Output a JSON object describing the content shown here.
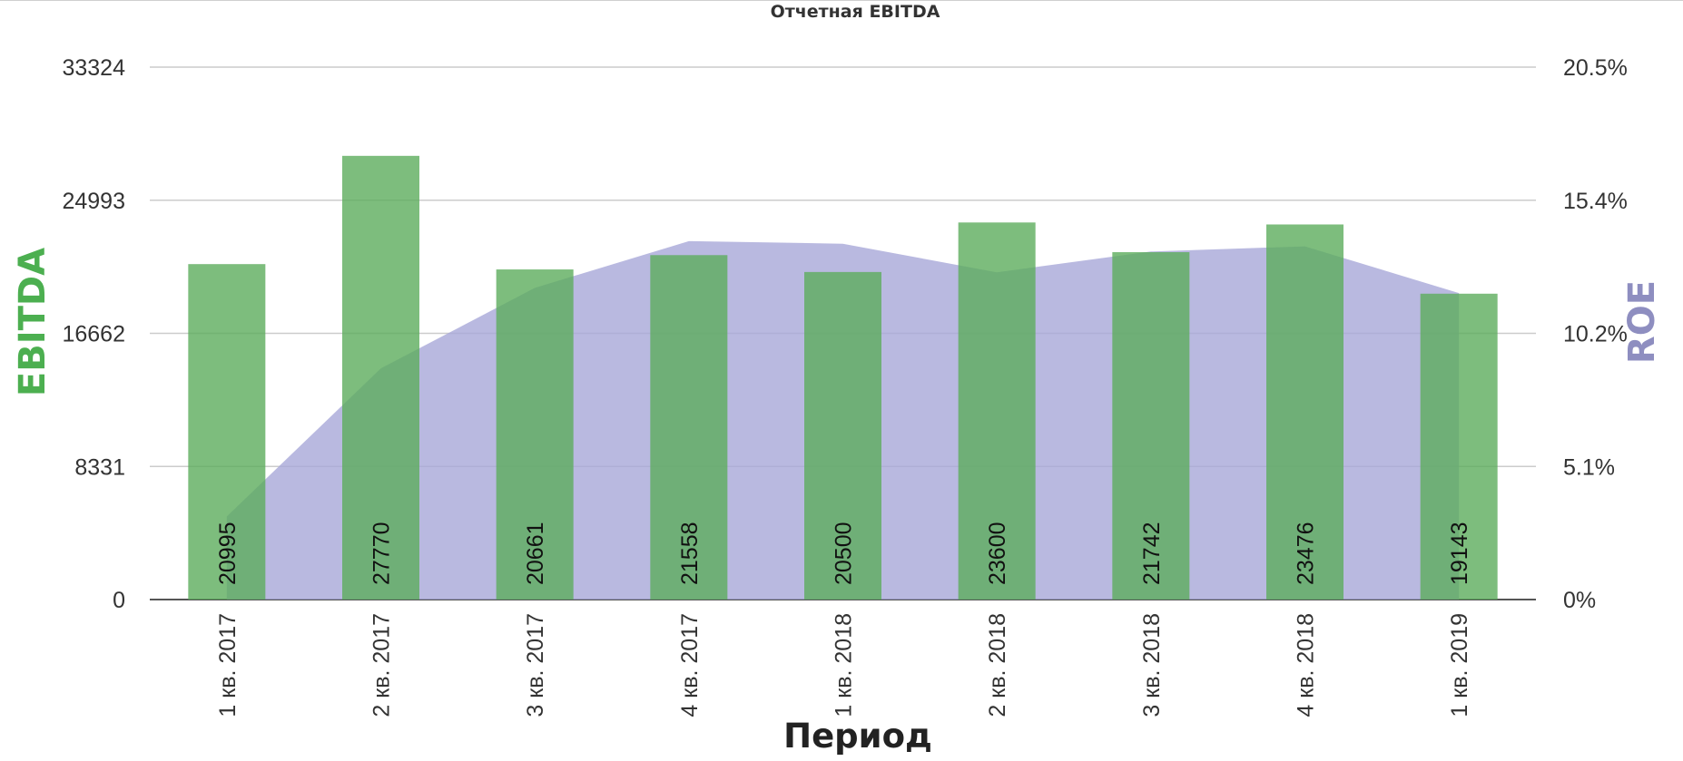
{
  "chart_data": {
    "type": "bar",
    "title": "Отчетная EBITDA",
    "xlabel": "Период",
    "ylabel": "EBITDA",
    "y2label": "ROE",
    "categories": [
      "1 кв. 2017",
      "2 кв. 2017",
      "3 кв. 2017",
      "4 кв. 2017",
      "1 кв. 2018",
      "2 кв. 2018",
      "3 кв. 2018",
      "4 кв. 2018",
      "1 кв. 2019"
    ],
    "series": [
      {
        "name": "EBITDA",
        "type": "bar",
        "axis": "left",
        "color": "#5cad5c",
        "values": [
          20995,
          27770,
          20661,
          21558,
          20500,
          23600,
          21742,
          23476,
          19143
        ]
      },
      {
        "name": "ROE",
        "type": "area",
        "axis": "right",
        "color": "#a8a8d8",
        "values": [
          3.2,
          8.9,
          12.0,
          13.8,
          13.7,
          12.6,
          13.4,
          13.6,
          11.8
        ]
      }
    ],
    "ylim": [
      0,
      33324
    ],
    "y_ticks": [
      "0",
      "8331",
      "16662",
      "24993",
      "33324"
    ],
    "y2lim": [
      0,
      20.5
    ],
    "y2_ticks": [
      "0%",
      "5.1%",
      "10.2%",
      "15.4%",
      "20.5%"
    ],
    "grid": true,
    "legend": "none",
    "data_labels": true
  },
  "colors": {
    "ebitda_axis_label": "#4caf50",
    "roe_axis_label": "#8e8ec0",
    "grid": "#cccccc"
  }
}
